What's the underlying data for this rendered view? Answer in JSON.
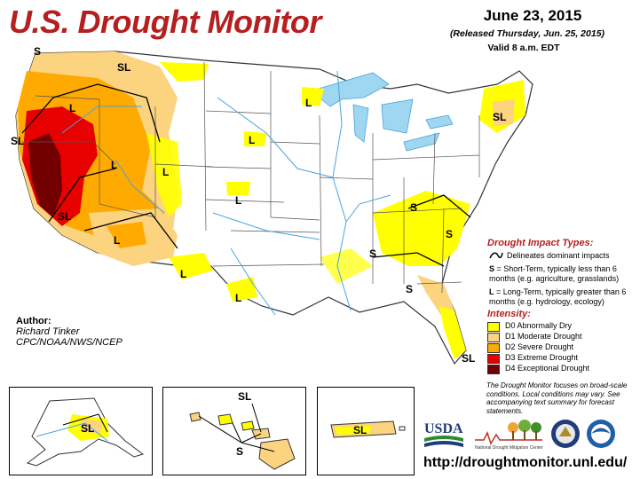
{
  "header": {
    "title": "U.S. Drought Monitor",
    "date": "June 23, 2015",
    "released": "(Released Thursday, Jun. 25, 2015)",
    "valid": "Valid 8 a.m. EDT"
  },
  "map_labels": {
    "s": "S",
    "sl": "SL",
    "l": "L"
  },
  "legend": {
    "impact_title": "Drought Impact Types:",
    "impact_line": "Delineates dominant impacts",
    "short_term_key": "S",
    "short_term_text": "= Short-Term, typically less than 6 months (e.g. agriculture, grasslands)",
    "long_term_key": "L",
    "long_term_text": "= Long-Term, typically greater than 6 months (e.g. hydrology, ecology)",
    "intensity_title": "Intensity:",
    "items": [
      {
        "label": "D0 Abnormally Dry",
        "color": "#ffff00"
      },
      {
        "label": "D1 Moderate Drought",
        "color": "#fcd37f"
      },
      {
        "label": "D2 Severe Drought",
        "color": "#ffaa00"
      },
      {
        "label": "D3 Extreme Drought",
        "color": "#e60000"
      },
      {
        "label": "D4 Exceptional Drought",
        "color": "#730000"
      }
    ]
  },
  "author": {
    "label": "Author:",
    "name": "Richard Tinker",
    "org": "CPC/NOAA/NWS/NCEP"
  },
  "note": "The Drought Monitor focuses on broad-scale conditions. Local conditions may vary. See accompanying text summary for forecast statements.",
  "logos": {
    "usda": "USDA",
    "ndmc": "National Drought Mitigation Center"
  },
  "url": "http://droughtmonitor.unl.edu/",
  "colors": {
    "title": "#b51f1f",
    "water": "#9fd7f0",
    "river": "#4aa3df"
  }
}
